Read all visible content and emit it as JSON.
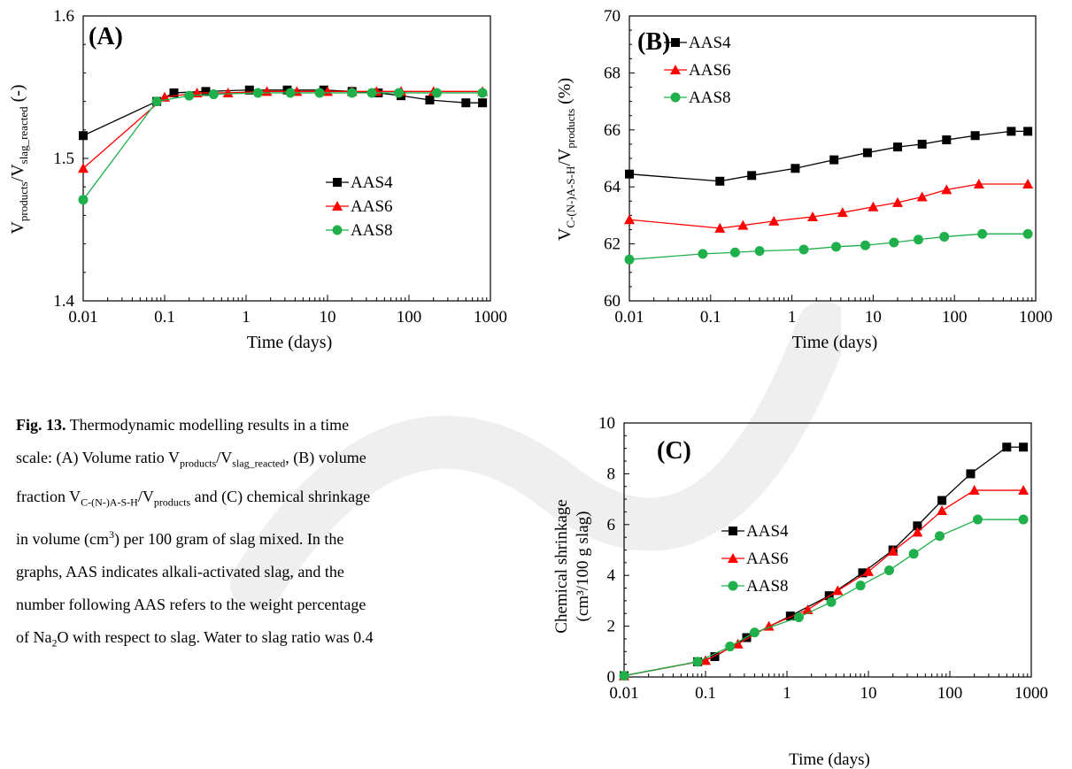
{
  "chart_data": [
    {
      "type": "line",
      "panel_label": "(A)",
      "xlabel": "Time (days)",
      "xscale": "log",
      "xlim": [
        0.01,
        1000
      ],
      "x_ticks": [
        "0.01",
        "0.1",
        "1",
        "10",
        "100",
        "1000"
      ],
      "ylim": [
        1.4,
        1.6
      ],
      "y_ticks": [
        "1.4",
        "1.5",
        "1.6"
      ],
      "legend_position": "center-right",
      "series": [
        {
          "name": "AAS4",
          "color": "#000000",
          "marker": "square",
          "x": [
            0.01,
            0.08,
            0.13,
            0.32,
            1.1,
            3.2,
            9,
            20,
            42,
            80,
            180,
            500,
            800
          ],
          "y": [
            1.516,
            1.54,
            1.546,
            1.547,
            1.548,
            1.548,
            1.548,
            1.547,
            1.546,
            1.544,
            1.541,
            1.539,
            1.539
          ]
        },
        {
          "name": "AAS6",
          "color": "#ff0000",
          "marker": "triangle",
          "x": [
            0.01,
            0.1,
            0.25,
            0.6,
            1.8,
            4.2,
            10,
            20,
            40,
            80,
            200,
            800
          ],
          "y": [
            1.493,
            1.543,
            1.546,
            1.546,
            1.547,
            1.547,
            1.547,
            1.547,
            1.547,
            1.547,
            1.547,
            1.547
          ]
        },
        {
          "name": "AAS8",
          "color": "#1fb04b",
          "marker": "circle",
          "x": [
            0.01,
            0.08,
            0.2,
            0.4,
            1.4,
            3.5,
            8,
            20,
            35,
            75,
            220,
            800
          ],
          "y": [
            1.471,
            1.54,
            1.544,
            1.545,
            1.546,
            1.546,
            1.546,
            1.546,
            1.546,
            1.546,
            1.546,
            1.546
          ]
        }
      ]
    },
    {
      "type": "line",
      "panel_label": "(B)",
      "xlabel": "Time (days)",
      "xscale": "log",
      "xlim": [
        0.01,
        1000
      ],
      "x_ticks": [
        "0.01",
        "0.1",
        "1",
        "10",
        "100",
        "1000"
      ],
      "ylim": [
        60,
        70
      ],
      "y_ticks": [
        "60",
        "62",
        "64",
        "66",
        "68",
        "70"
      ],
      "legend_position": "top-left",
      "series": [
        {
          "name": "AAS4",
          "color": "#000000",
          "marker": "square",
          "x": [
            0.01,
            0.13,
            0.32,
            1.1,
            3.3,
            8.5,
            20,
            40,
            80,
            180,
            500,
            800
          ],
          "y": [
            64.45,
            64.2,
            64.4,
            64.65,
            64.95,
            65.2,
            65.4,
            65.5,
            65.65,
            65.8,
            65.95,
            65.95
          ]
        },
        {
          "name": "AAS6",
          "color": "#ff0000",
          "marker": "triangle",
          "x": [
            0.01,
            0.13,
            0.25,
            0.6,
            1.8,
            4.2,
            10,
            20,
            40,
            80,
            200,
            800
          ],
          "y": [
            62.85,
            62.55,
            62.65,
            62.8,
            62.95,
            63.1,
            63.3,
            63.45,
            63.65,
            63.9,
            64.1,
            64.1
          ]
        },
        {
          "name": "AAS8",
          "color": "#1fb04b",
          "marker": "circle",
          "x": [
            0.01,
            0.08,
            0.2,
            0.4,
            1.4,
            3.5,
            8,
            18,
            36,
            75,
            220,
            800
          ],
          "y": [
            61.45,
            61.65,
            61.7,
            61.75,
            61.8,
            61.9,
            61.95,
            62.05,
            62.15,
            62.25,
            62.35,
            62.35
          ]
        }
      ]
    },
    {
      "type": "line",
      "panel_label": "(C)",
      "xlabel": "Time (days)",
      "ylabel_line1": "Chemical shrinkage",
      "ylabel_line2": "(cm³/100 g slag)",
      "xscale": "log",
      "xlim": [
        0.01,
        1000
      ],
      "x_ticks": [
        "0.01",
        "0.1",
        "1",
        "10",
        "100",
        "1000"
      ],
      "ylim": [
        0,
        10
      ],
      "y_ticks": [
        "0",
        "2",
        "4",
        "6",
        "8",
        "10"
      ],
      "legend_position": "center-left",
      "series": [
        {
          "name": "AAS4",
          "color": "#000000",
          "marker": "square",
          "x": [
            0.01,
            0.08,
            0.13,
            0.32,
            1.1,
            3.3,
            8.5,
            20,
            40,
            80,
            180,
            500,
            800
          ],
          "y": [
            0.05,
            0.6,
            0.8,
            1.55,
            2.4,
            3.2,
            4.1,
            5.0,
            5.95,
            6.95,
            8.0,
            9.05,
            9.05
          ]
        },
        {
          "name": "AAS6",
          "color": "#ff0000",
          "marker": "triangle",
          "x": [
            0.01,
            0.1,
            0.25,
            0.6,
            1.8,
            4.2,
            10,
            20,
            40,
            80,
            200,
            800
          ],
          "y": [
            0.05,
            0.65,
            1.3,
            2.0,
            2.65,
            3.4,
            4.15,
            4.95,
            5.7,
            6.55,
            7.35,
            7.35
          ]
        },
        {
          "name": "AAS8",
          "color": "#1fb04b",
          "marker": "circle",
          "x": [
            0.01,
            0.08,
            0.2,
            0.4,
            1.4,
            3.5,
            8,
            18,
            36,
            75,
            220,
            800
          ],
          "y": [
            0.05,
            0.6,
            1.2,
            1.75,
            2.35,
            2.95,
            3.6,
            4.2,
            4.85,
            5.55,
            6.2,
            6.2
          ]
        }
      ]
    }
  ],
  "caption": {
    "fig_label": "Fig. 13.",
    "l1": "Thermodynamic modelling results in a time",
    "l2a": "scale: (A) Volume ratio V",
    "l2b": "products",
    "l2c": "/V",
    "l2d": "slag_reacted",
    "l2e": ", (B) volume",
    "l3a": "fraction V",
    "l3b": "C-(N-)A-S-H",
    "l3c": "/V",
    "l3d": "products",
    "l3e": " and (C) chemical shrinkage",
    "l4a": "in volume (cm",
    "l4b": "3",
    "l4c": ") per 100 gram of slag mixed. In the",
    "l5": "graphs, AAS indicates alkali-activated slag, and the",
    "l6": "number following AAS refers to the weight percentage",
    "l7a": "of Na",
    "l7b": "2",
    "l7c": "O with respect to slag. Water to slag ratio was 0.4"
  },
  "ylabelA": {
    "v": "V",
    "sub1": "products",
    "mid": "/V",
    "sub2": "slag_reacted",
    "unit": " (-)"
  },
  "ylabelB": {
    "v": "V",
    "sub1": "C-(N-)A-S-H",
    "mid": "/V",
    "sub2": "products",
    "unit": " (%)"
  }
}
